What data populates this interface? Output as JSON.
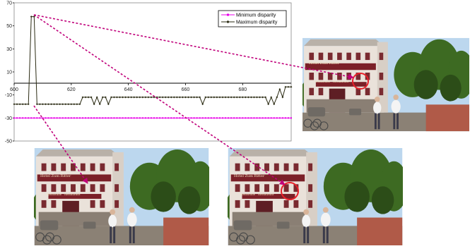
{
  "chart_data": {
    "type": "line",
    "title": "",
    "xlabel": "",
    "ylabel": "",
    "xlim": [
      600,
      697
    ],
    "ylim": [
      -50,
      70
    ],
    "xticks": [
      "600",
      "620",
      "640",
      "660",
      "680"
    ],
    "yticks": [
      "70",
      "50",
      "30",
      "10",
      "-10",
      "-30",
      "-50"
    ],
    "grid": false,
    "legend_position": "top-right",
    "series": [
      {
        "name": "Minimum disparity",
        "color": "#e800e8",
        "marker": "square",
        "x": [
          600,
          697
        ],
        "y": [
          -30,
          -30
        ]
      },
      {
        "name": "Maximum disparity",
        "color": "#2a2a12",
        "marker": "diamond",
        "x": [
          600,
          601,
          602,
          603,
          604,
          605,
          606,
          607,
          608,
          609,
          610,
          611,
          612,
          613,
          614,
          615,
          616,
          617,
          618,
          619,
          620,
          621,
          622,
          623,
          624,
          625,
          626,
          627,
          628,
          629,
          630,
          631,
          632,
          633,
          634,
          635,
          636,
          637,
          638,
          639,
          640,
          641,
          642,
          643,
          644,
          645,
          646,
          647,
          648,
          649,
          650,
          651,
          652,
          653,
          654,
          655,
          656,
          657,
          658,
          659,
          660,
          661,
          662,
          663,
          664,
          665,
          666,
          667,
          668,
          669,
          670,
          671,
          672,
          673,
          674,
          675,
          676,
          677,
          678,
          679,
          680,
          681,
          682,
          683,
          684,
          685,
          686,
          687,
          688,
          689,
          690,
          691,
          692,
          693,
          694,
          695,
          696,
          697
        ],
        "y": [
          -18,
          -18,
          -18,
          -18,
          -18,
          -18,
          58,
          58,
          -18,
          -18,
          -18,
          -18,
          -18,
          -18,
          -18,
          -18,
          -18,
          -18,
          -18,
          -18,
          -18,
          -18,
          -18,
          -18,
          -12,
          -12,
          -12,
          -12,
          -18,
          -12,
          -18,
          -12,
          -12,
          -18,
          -12,
          -12,
          -12,
          -12,
          -12,
          -12,
          -12,
          -12,
          -12,
          -12,
          -12,
          -12,
          -12,
          -12,
          -12,
          -12,
          -12,
          -12,
          -12,
          -12,
          -12,
          -12,
          -12,
          -12,
          -12,
          -12,
          -12,
          -12,
          -12,
          -12,
          -12,
          -12,
          -18,
          -12,
          -12,
          -12,
          -12,
          -12,
          -12,
          -12,
          -12,
          -12,
          -12,
          -12,
          -12,
          -12,
          -12,
          -12,
          -12,
          -12,
          -12,
          -12,
          -12,
          -12,
          -12,
          -18,
          -12,
          -18,
          -12,
          -5,
          -12,
          -3,
          -3,
          -3
        ]
      }
    ]
  },
  "photos": [
    {
      "sign_top": "Hotel Zum Ritter",
      "sign_bottom": "Weinstube · Restaurant"
    },
    {
      "sign_top": "Hotel Zum Ritter",
      "sign_bottom": "Weinstube · Restaurant"
    },
    {
      "sign_top": "Hotel Zum Ritter",
      "sign_bottom": "Weinstube · Restaurant"
    }
  ],
  "colors": {
    "arrow": "#c0007a",
    "circle": "#e8202a",
    "sky": "#bcd7ee",
    "building": "#eae2da",
    "roof": "#b9b1a8",
    "trees": "#3d6a22",
    "ground": "#8b8175"
  }
}
